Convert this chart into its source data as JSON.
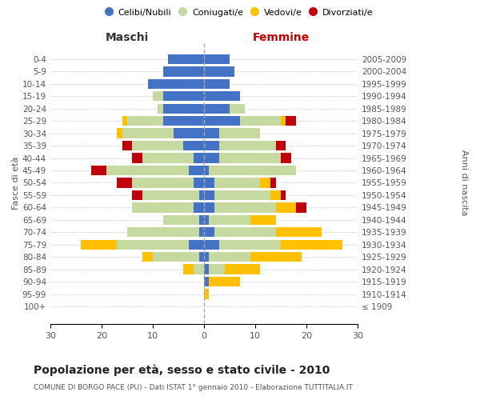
{
  "age_groups": [
    "100+",
    "95-99",
    "90-94",
    "85-89",
    "80-84",
    "75-79",
    "70-74",
    "65-69",
    "60-64",
    "55-59",
    "50-54",
    "45-49",
    "40-44",
    "35-39",
    "30-34",
    "25-29",
    "20-24",
    "15-19",
    "10-14",
    "5-9",
    "0-4"
  ],
  "birth_years": [
    "≤ 1909",
    "1910-1914",
    "1915-1919",
    "1920-1924",
    "1925-1929",
    "1930-1934",
    "1935-1939",
    "1940-1944",
    "1945-1949",
    "1950-1954",
    "1955-1959",
    "1960-1964",
    "1965-1969",
    "1970-1974",
    "1975-1979",
    "1980-1984",
    "1985-1989",
    "1990-1994",
    "1995-1999",
    "2000-2004",
    "2005-2009"
  ],
  "maschi": {
    "celibi": [
      0,
      0,
      0,
      0,
      1,
      3,
      1,
      1,
      2,
      1,
      2,
      3,
      2,
      4,
      6,
      8,
      8,
      8,
      11,
      8,
      7
    ],
    "coniugati": [
      0,
      0,
      0,
      2,
      9,
      14,
      14,
      7,
      12,
      11,
      12,
      16,
      10,
      10,
      10,
      7,
      1,
      2,
      0,
      0,
      0
    ],
    "vedovi": [
      0,
      0,
      0,
      2,
      2,
      7,
      0,
      0,
      0,
      0,
      0,
      0,
      0,
      0,
      1,
      1,
      0,
      0,
      0,
      0,
      0
    ],
    "divorziati": [
      0,
      0,
      0,
      0,
      0,
      0,
      0,
      0,
      0,
      2,
      3,
      3,
      2,
      2,
      0,
      0,
      0,
      0,
      0,
      0,
      0
    ]
  },
  "femmine": {
    "celibi": [
      0,
      0,
      1,
      1,
      1,
      3,
      2,
      1,
      2,
      2,
      2,
      1,
      3,
      3,
      3,
      7,
      5,
      7,
      5,
      6,
      5
    ],
    "coniugati": [
      0,
      0,
      0,
      3,
      8,
      12,
      12,
      8,
      12,
      11,
      9,
      17,
      12,
      11,
      8,
      8,
      3,
      0,
      0,
      0,
      0
    ],
    "vedovi": [
      0,
      1,
      6,
      7,
      10,
      12,
      9,
      5,
      4,
      2,
      2,
      0,
      0,
      0,
      0,
      1,
      0,
      0,
      0,
      0,
      0
    ],
    "divorziati": [
      0,
      0,
      0,
      0,
      0,
      0,
      0,
      0,
      2,
      1,
      1,
      0,
      2,
      2,
      0,
      2,
      0,
      0,
      0,
      0,
      0
    ]
  },
  "colors": {
    "celibi": "#4472c4",
    "coniugati": "#c5d9a0",
    "vedovi": "#ffc000",
    "divorziati": "#c0000b"
  },
  "xlim": 30,
  "title": "Popolazione per età, sesso e stato civile - 2010",
  "subtitle": "COMUNE DI BORGO PACE (PU) - Dati ISTAT 1° gennaio 2010 - Elaborazione TUTTITALIA.IT",
  "ylabel_left": "Fasce di età",
  "ylabel_right": "Anni di nascita",
  "xlabel_left": "Maschi",
  "xlabel_right": "Femmine",
  "bg_color": "#ffffff",
  "grid_color": "#cccccc",
  "bar_height": 0.8,
  "legend_labels": [
    "Celibi/Nubili",
    "Coniugati/e",
    "Vedovi/e",
    "Divorziati/e"
  ]
}
